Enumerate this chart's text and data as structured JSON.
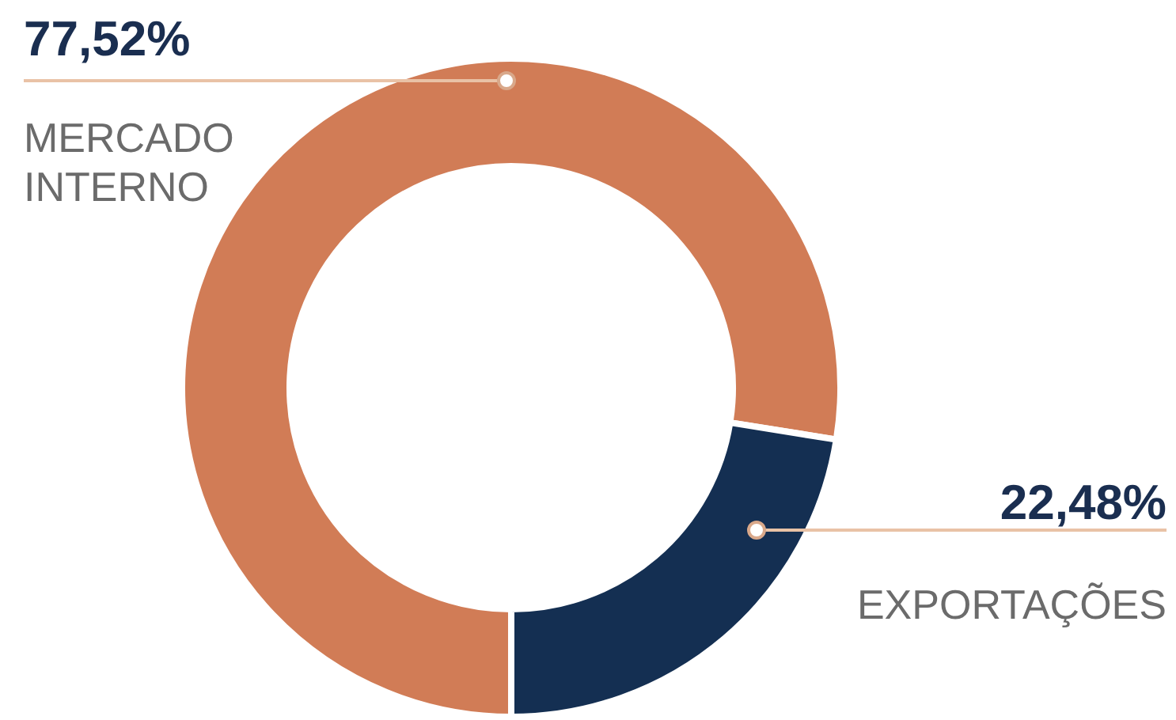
{
  "chart_data": {
    "type": "donut",
    "categories": [
      "MERCADO INTERNO",
      "EXPORTAÇÕES"
    ],
    "values": [
      77.52,
      22.48
    ],
    "colors": [
      "#d17c56",
      "#142f52"
    ],
    "value_labels": [
      "77,52%",
      "22,48%"
    ]
  }
}
